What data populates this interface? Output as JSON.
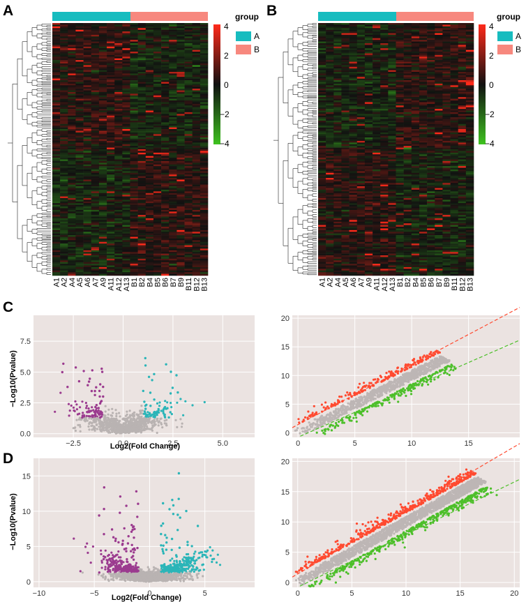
{
  "panel_labels": {
    "a": "A",
    "b": "B",
    "c": "C",
    "d": "D"
  },
  "legend": {
    "title": "group",
    "ticks": [
      "4",
      "2",
      "0",
      "−2",
      "−4"
    ],
    "items": [
      "A",
      "B"
    ],
    "colors": {
      "A": "#17bcbf",
      "B": "#f7887e",
      "low": "#3ec21f",
      "mid": "#111111",
      "high": "#ff2a1a"
    }
  },
  "heatmap_a": {
    "columns": [
      "A1",
      "A2",
      "A4",
      "A5",
      "A6",
      "A7",
      "A9",
      "A11",
      "A12",
      "A13",
      "B1",
      "B2",
      "B4",
      "B5",
      "B6",
      "B7",
      "B9",
      "B11",
      "B12",
      "B13"
    ]
  },
  "heatmap_b": {
    "columns": [
      "A1",
      "A2",
      "A4",
      "A5",
      "A6",
      "A7",
      "A9",
      "A11",
      "A12",
      "A13",
      "B1",
      "B2",
      "B4",
      "B5",
      "B6",
      "B7",
      "B9",
      "B11",
      "B12",
      "B13"
    ]
  },
  "chart_data": [
    {
      "type": "scatter",
      "panel": "C-left",
      "xlabel": "Log2(Fold Change)",
      "ylabel": "−Log10(Pvalue)",
      "xticks": [
        "−2.5",
        "0.0",
        "2.5",
        "5.0"
      ],
      "xtick_values": [
        -2.5,
        0,
        2.5,
        5
      ],
      "yticks": [
        "0.0",
        "2.5",
        "5.0",
        "7.5"
      ],
      "ytick_values": [
        0,
        2.5,
        5,
        7.5
      ],
      "xlim": [
        -4.5,
        6.6
      ],
      "ylim": [
        -0.3,
        9.6
      ],
      "groups": {
        "down": "#9b3b8f",
        "up": "#2bb5b8",
        "ns": "#b9b3b2"
      }
    },
    {
      "type": "scatter",
      "panel": "C-right",
      "xticks": [
        "0",
        "5",
        "10",
        "15"
      ],
      "xtick_values": [
        0,
        5,
        10,
        15
      ],
      "yticks": [
        "0",
        "5",
        "10",
        "15",
        "20"
      ],
      "ytick_values": [
        0,
        5,
        10,
        15,
        20
      ],
      "xlim": [
        -0.5,
        19.5
      ],
      "ylim": [
        -0.8,
        20.5
      ],
      "groups": {
        "up": "#ff4a30",
        "down": "#4dbf2a",
        "ns": "#bdb6b5"
      }
    },
    {
      "type": "scatter",
      "panel": "D-left",
      "xlabel": "Log2(Fold Change)",
      "ylabel": "−Log10(Pvalue)",
      "xticks": [
        "−10",
        "−5",
        "0",
        "5"
      ],
      "xtick_values": [
        -10,
        -5,
        0,
        5
      ],
      "yticks": [
        "0",
        "5",
        "10",
        "15"
      ],
      "ytick_values": [
        0,
        5,
        10,
        15
      ],
      "xlim": [
        -10.5,
        9.5
      ],
      "ylim": [
        -0.8,
        17.5
      ],
      "groups": {
        "down": "#9b3b8f",
        "up": "#2bb5b8",
        "ns": "#b9b3b2"
      }
    },
    {
      "type": "scatter",
      "panel": "D-right",
      "xticks": [
        "0",
        "5",
        "10",
        "15",
        "20"
      ],
      "xtick_values": [
        0,
        5,
        10,
        15,
        20
      ],
      "yticks": [
        "0",
        "5",
        "10",
        "15",
        "20"
      ],
      "ytick_values": [
        0,
        5,
        10,
        15,
        20
      ],
      "xlim": [
        -0.5,
        20.5
      ],
      "ylim": [
        -0.8,
        20.5
      ],
      "groups": {
        "up": "#ff4a30",
        "down": "#4dbf2a",
        "ns": "#bdb6b5"
      }
    }
  ]
}
